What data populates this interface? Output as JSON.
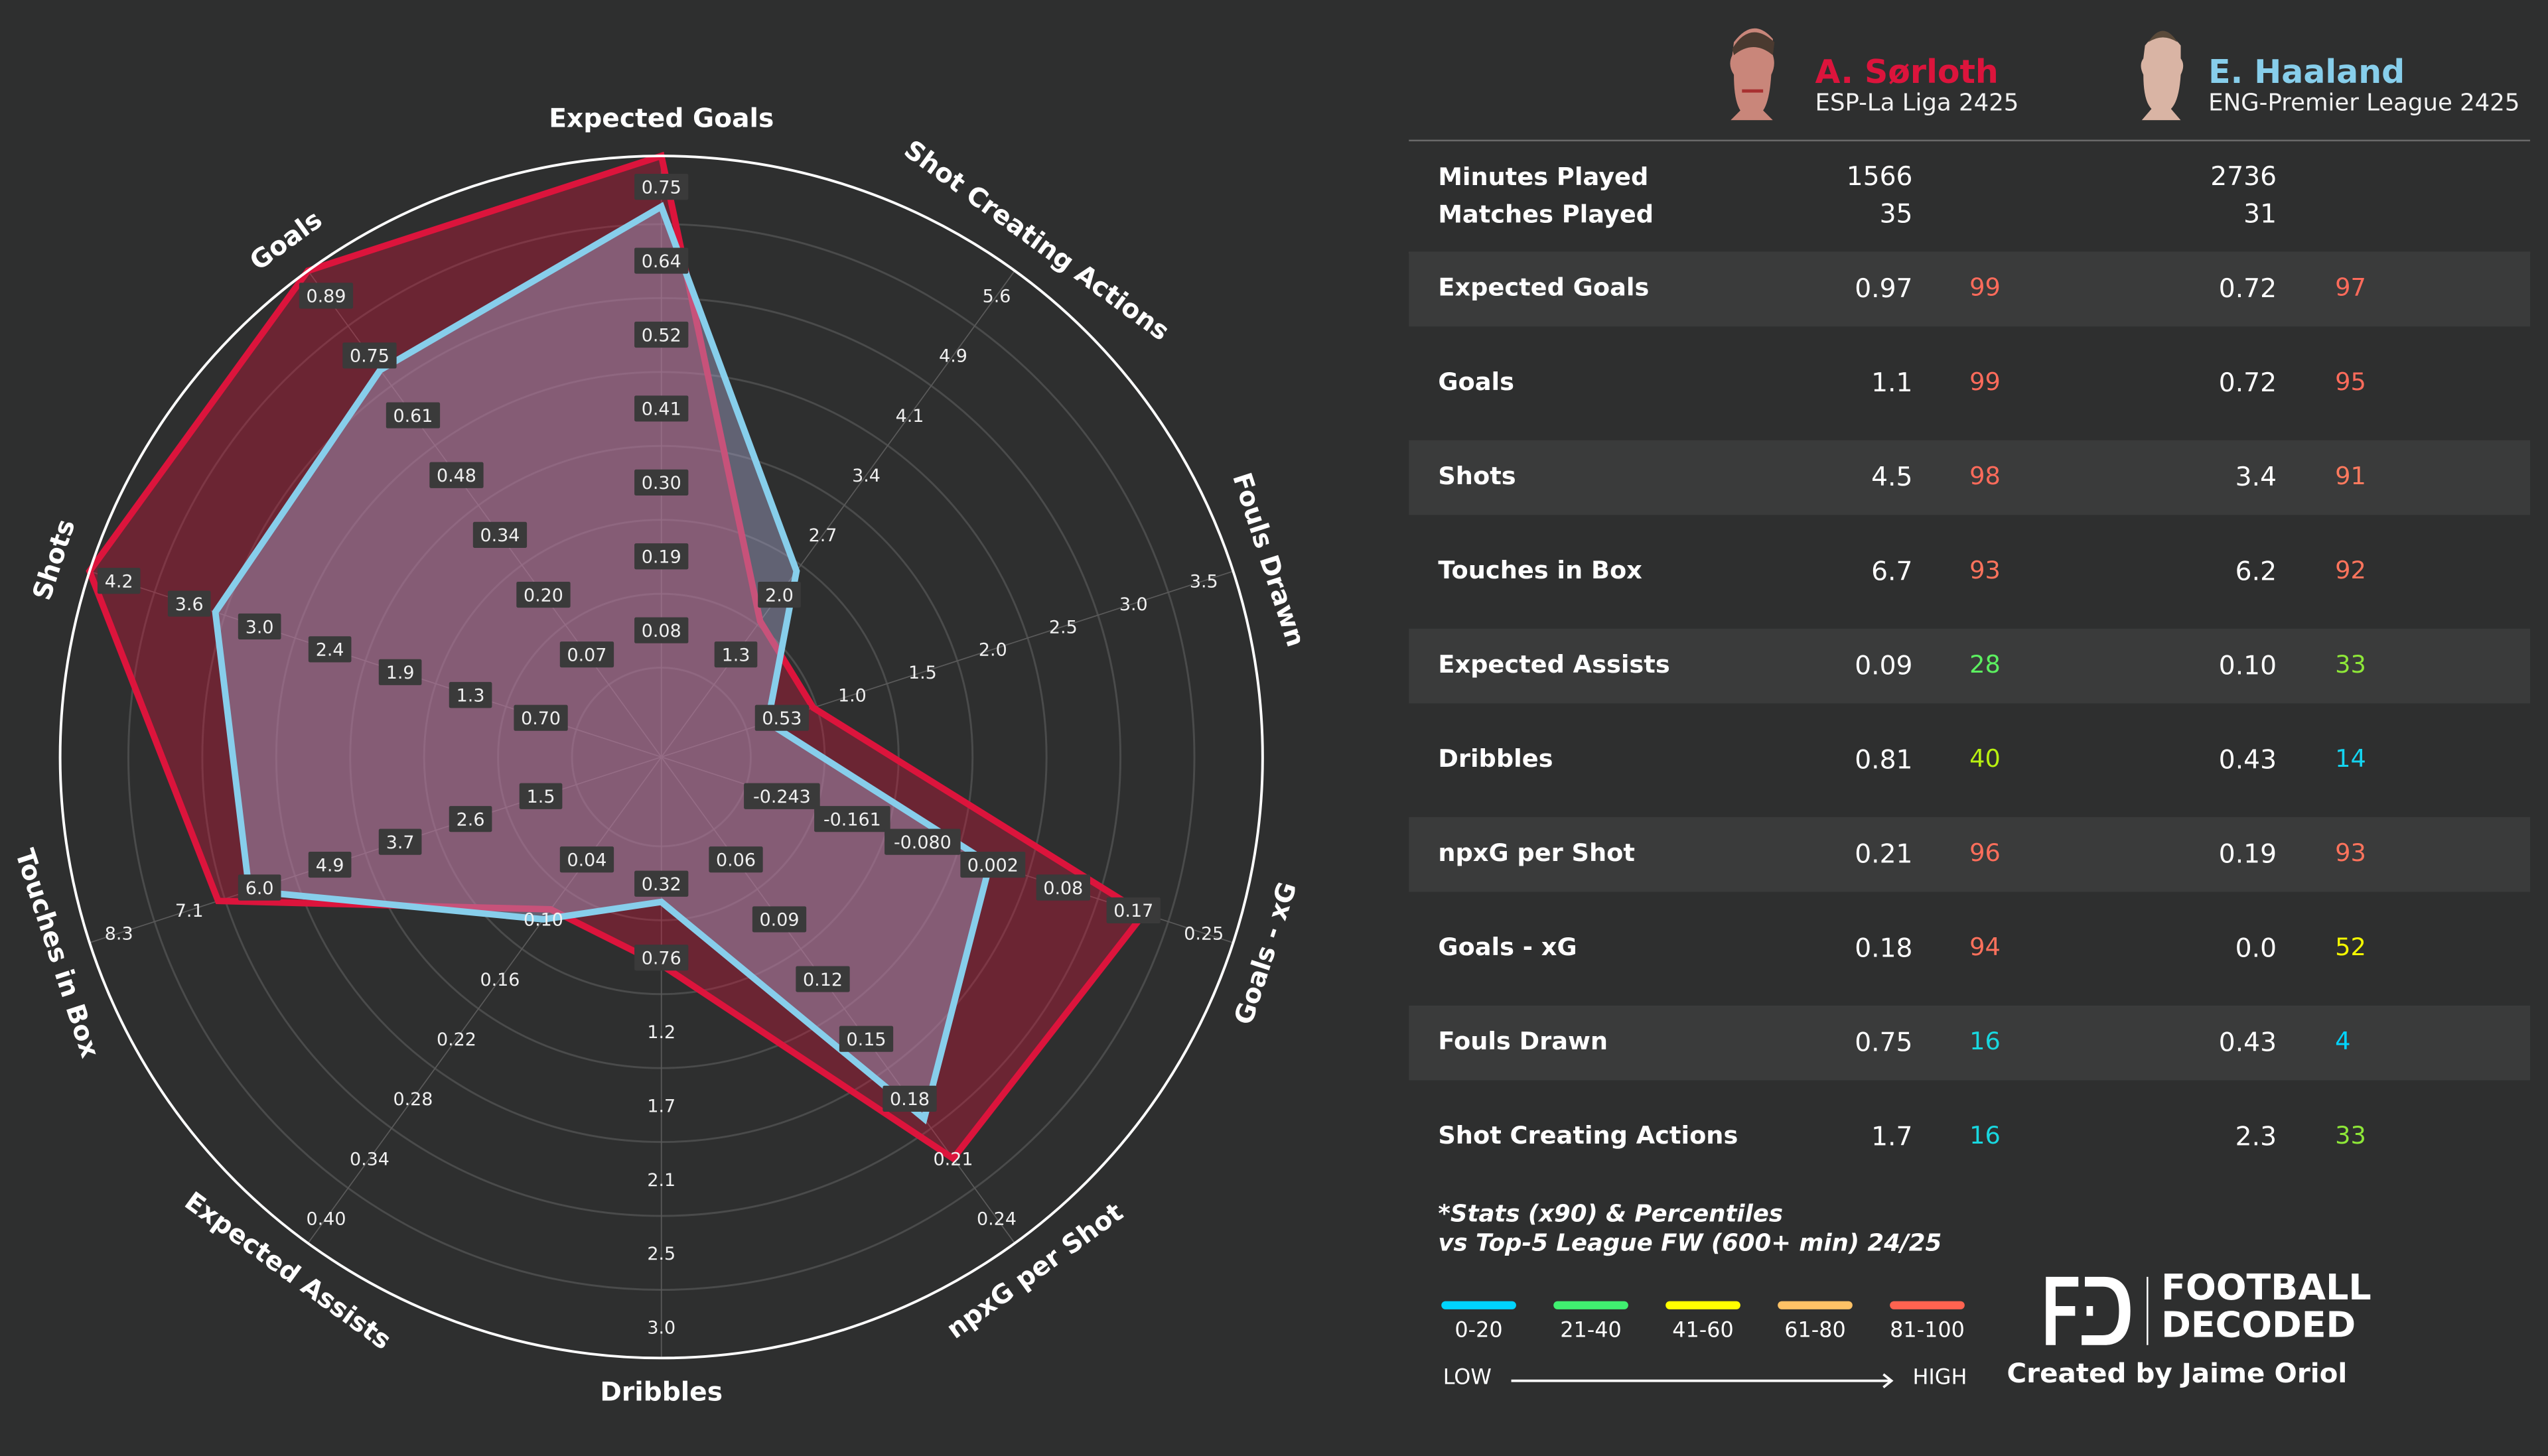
{
  "players": [
    {
      "name": "A. Sørloth",
      "league": "ESP-La Liga 2425",
      "color": "#dc143c",
      "minutes": "1566",
      "matches": "35"
    },
    {
      "name": "E. Haaland",
      "league": "ENG-Premier League 2425",
      "color": "#87ceeb",
      "minutes": "2736",
      "matches": "31"
    }
  ],
  "summary_labels": {
    "minutes": "Minutes Played",
    "matches": "Matches Played"
  },
  "table": [
    {
      "label": "Expected Goals",
      "p1": "0.97",
      "p1_pct": "99",
      "p1_color": "#ff6b5b",
      "p2": "0.72",
      "p2_pct": "97",
      "p2_color": "#ff6b5b"
    },
    {
      "label": "Goals",
      "p1": "1.1",
      "p1_pct": "99",
      "p1_color": "#ff6b5b",
      "p2": "0.72",
      "p2_pct": "95",
      "p2_color": "#ff6b5b"
    },
    {
      "label": "Shots",
      "p1": "4.5",
      "p1_pct": "98",
      "p1_color": "#ff6b5b",
      "p2": "3.4",
      "p2_pct": "91",
      "p2_color": "#ff7a5e"
    },
    {
      "label": "Touches in Box",
      "p1": "6.7",
      "p1_pct": "93",
      "p1_color": "#ff735c",
      "p2": "6.2",
      "p2_pct": "92",
      "p2_color": "#ff745c"
    },
    {
      "label": "Expected Assists",
      "p1": "0.09",
      "p1_pct": "28",
      "p1_color": "#5cf060",
      "p2": "0.10",
      "p2_pct": "33",
      "p2_color": "#8ee838"
    },
    {
      "label": "Dribbles",
      "p1": "0.81",
      "p1_pct": "40",
      "p1_color": "#b8f010",
      "p2": "0.43",
      "p2_pct": "14",
      "p2_color": "#14d4f0"
    },
    {
      "label": "npxG per Shot",
      "p1": "0.21",
      "p1_pct": "96",
      "p1_color": "#ff6e5b",
      "p2": "0.19",
      "p2_pct": "93",
      "p2_color": "#ff735c"
    },
    {
      "label": "Goals - xG",
      "p1": "0.18",
      "p1_pct": "94",
      "p1_color": "#ff715c",
      "p2": "0.0",
      "p2_pct": "52",
      "p2_color": "#f4f800"
    },
    {
      "label": "Fouls Drawn",
      "p1": "0.75",
      "p1_pct": "16",
      "p1_color": "#18d8e0",
      "p2": "0.43",
      "p2_pct": "4",
      "p2_color": "#00d4ff"
    },
    {
      "label": "Shot Creating Actions",
      "p1": "1.7",
      "p1_pct": "16",
      "p1_color": "#18d8e0",
      "p2": "2.3",
      "p2_pct": "33",
      "p2_color": "#8ee838"
    }
  ],
  "note": [
    "*Stats (x90) & Percentiles",
    "vs Top-5 League FW (600+ min) 24/25"
  ],
  "legend": {
    "items": [
      {
        "label": "0-20",
        "color": "#00d4ff"
      },
      {
        "label": "21-40",
        "color": "#40f070"
      },
      {
        "label": "41-60",
        "color": "#ffff00"
      },
      {
        "label": "61-80",
        "color": "#ffc266"
      },
      {
        "label": "81-100",
        "color": "#ff6350"
      }
    ],
    "low": "LOW",
    "high": "HIGH"
  },
  "brand": {
    "logo_text": [
      "FOOTBALL",
      "DECODED"
    ],
    "credit": "Created by Jaime Oriol"
  },
  "chart_data": {
    "type": "radar",
    "grid": true,
    "axes": [
      {
        "name": "Expected Goals",
        "ticks": [
          "0.08",
          "0.19",
          "0.30",
          "0.41",
          "0.52",
          "0.64",
          "0.75"
        ]
      },
      {
        "name": "Shot Creating Actions",
        "ticks": [
          "1.3",
          "2.0",
          "2.7",
          "3.4",
          "4.1",
          "4.9",
          "5.6"
        ]
      },
      {
        "name": "Fouls Drawn",
        "ticks": [
          "0.53",
          "1.0",
          "1.5",
          "2.0",
          "2.5",
          "3.0",
          "3.5"
        ]
      },
      {
        "name": "Goals - xG",
        "ticks": [
          "-0.243",
          "-0.161",
          "-0.080",
          "0.002",
          "0.08",
          "0.17",
          "0.25"
        ]
      },
      {
        "name": "npxG per Shot",
        "ticks": [
          "0.06",
          "0.09",
          "0.12",
          "0.15",
          "0.18",
          "0.21",
          "0.24"
        ]
      },
      {
        "name": "Dribbles",
        "ticks": [
          "0.32",
          "0.76",
          "1.2",
          "1.7",
          "2.1",
          "2.5",
          "3.0"
        ]
      },
      {
        "name": "Expected Assists",
        "ticks": [
          "0.04",
          "0.10",
          "0.16",
          "0.22",
          "0.28",
          "0.34",
          "0.40"
        ]
      },
      {
        "name": "Touches in Box",
        "ticks": [
          "1.5",
          "2.6",
          "3.7",
          "4.9",
          "6.0",
          "7.1",
          "8.3"
        ]
      },
      {
        "name": "Shots",
        "ticks": [
          "0.70",
          "1.3",
          "1.9",
          "2.4",
          "3.0",
          "3.6",
          "4.2"
        ]
      },
      {
        "name": "Goals",
        "ticks": [
          "0.07",
          "0.20",
          "0.34",
          "0.48",
          "0.61",
          "0.75",
          "0.89"
        ]
      }
    ],
    "series": [
      {
        "name": "A. Sørloth",
        "color": "#dc143c",
        "values": [
          0.97,
          1.7,
          0.75,
          0.18,
          0.21,
          0.81,
          0.09,
          6.7,
          4.5,
          1.1
        ]
      },
      {
        "name": "E. Haaland",
        "color": "#87ceeb",
        "values": [
          0.72,
          2.3,
          0.43,
          0.0,
          0.19,
          0.43,
          0.1,
          6.2,
          3.4,
          0.72
        ]
      }
    ]
  }
}
